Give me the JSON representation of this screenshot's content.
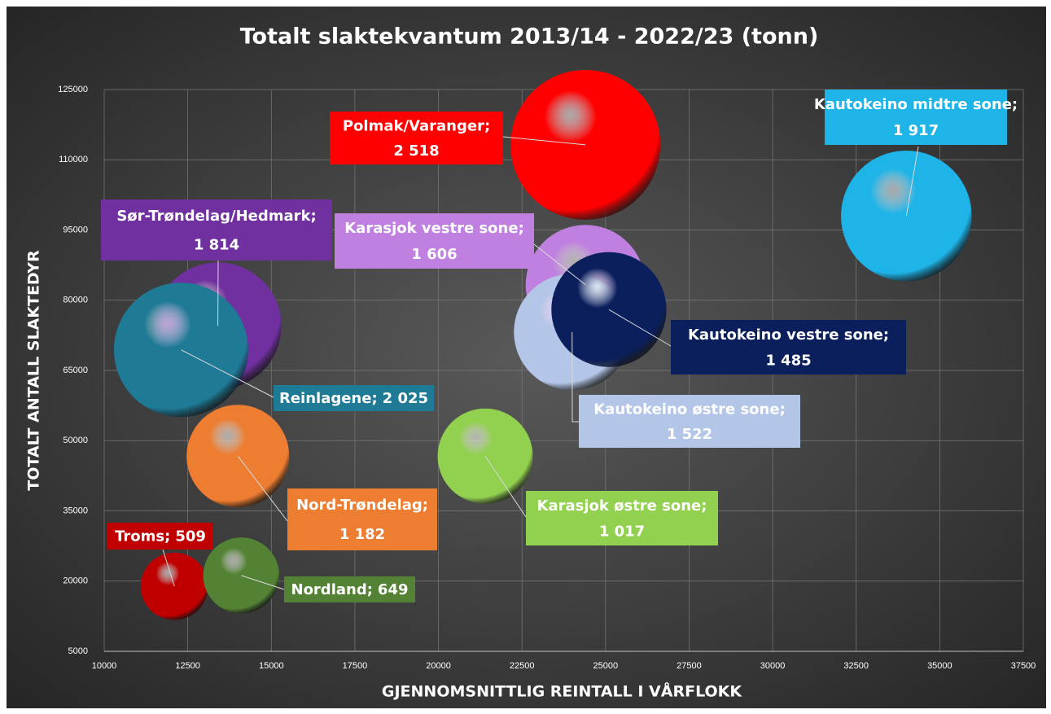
{
  "chart_data": {
    "type": "bubble",
    "title": "Totalt slaktekvantum 2013/14 - 2022/23 (tonn)",
    "x_label": "GJENNOMSNITTLIG REINTALL I VÅRFLOKK",
    "y_label": "TOTALT ANTALL SLAKTEDYR",
    "label_separator": ";",
    "xlim": [
      10000,
      37500
    ],
    "xticks": [
      10000,
      12500,
      15000,
      17500,
      20000,
      22500,
      25000,
      27500,
      30000,
      32500,
      35000,
      37500
    ],
    "ylim": [
      5000,
      125000
    ],
    "yticks": [
      5000,
      20000,
      35000,
      50000,
      65000,
      80000,
      95000,
      110000,
      125000
    ],
    "grid": true,
    "series": [
      {
        "name": "Polmak/Varanger",
        "color": "#ff0000",
        "x": [
          24400
        ],
        "values": [
          113200
        ],
        "sizes": [
          2518
        ],
        "value_labels": [
          "2 518"
        ]
      },
      {
        "name": "Kautokeino midtre sone",
        "color": "#1fb4e8",
        "x": [
          34000
        ],
        "values": [
          98000
        ],
        "sizes": [
          1917
        ],
        "value_labels": [
          "1 917"
        ]
      },
      {
        "name": "Sør-Trøndelag/Hedmark",
        "color": "#7030a0",
        "x": [
          13400
        ],
        "values": [
          74500
        ],
        "sizes": [
          1814
        ],
        "value_labels": [
          "1 814"
        ]
      },
      {
        "name": "Reinlagene",
        "color": "#1f7a96",
        "x": [
          12300
        ],
        "values": [
          69400
        ],
        "sizes": [
          2025
        ],
        "value_labels": [
          "2 025"
        ]
      },
      {
        "name": "Karasjok vestre sone",
        "color": "#c080e0",
        "x": [
          24400
        ],
        "values": [
          83300
        ],
        "sizes": [
          1606
        ],
        "value_labels": [
          "1 606"
        ]
      },
      {
        "name": "Kautokeino østre sone",
        "color": "#b4c6e7",
        "x": [
          24000
        ],
        "values": [
          73200
        ],
        "sizes": [
          1522
        ],
        "value_labels": [
          "1 522"
        ]
      },
      {
        "name": "Kautokeino vestre sone",
        "color": "#0b1f5c",
        "x": [
          25100
        ],
        "values": [
          78000
        ],
        "sizes": [
          1485
        ],
        "value_labels": [
          "1 485"
        ]
      },
      {
        "name": "Nord-Trøndelag",
        "color": "#ed7d31",
        "x": [
          14000
        ],
        "values": [
          46700
        ],
        "sizes": [
          1182
        ],
        "value_labels": [
          "1 182"
        ]
      },
      {
        "name": "Karasjok østre sone",
        "color": "#92d050",
        "x": [
          21400
        ],
        "values": [
          46700
        ],
        "sizes": [
          1017
        ],
        "value_labels": [
          "1 017"
        ]
      },
      {
        "name": "Troms",
        "color": "#c00000",
        "x": [
          12100
        ],
        "values": [
          18900
        ],
        "sizes": [
          509
        ],
        "value_labels": [
          "509"
        ]
      },
      {
        "name": "Nordland",
        "color": "#548235",
        "x": [
          14100
        ],
        "values": [
          21200
        ],
        "sizes": [
          649
        ],
        "value_labels": [
          "649"
        ]
      }
    ]
  }
}
